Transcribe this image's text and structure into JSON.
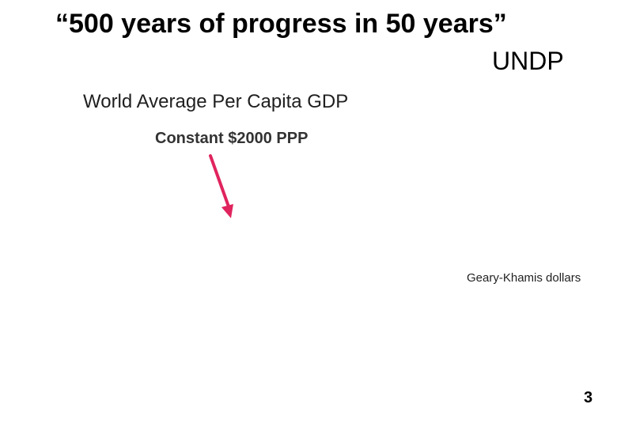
{
  "slide": {
    "quote": "“500 years of progress in 50 years”",
    "attribution": "UNDP",
    "chart_title": "World Average Per Capita GDP",
    "chart_subtitle": "Constant $2000 PPP",
    "unit_note": "Geary-Khamis dollars",
    "page_number": "3"
  },
  "colors": {
    "arrow": "#e0245e",
    "text": "#000000"
  }
}
